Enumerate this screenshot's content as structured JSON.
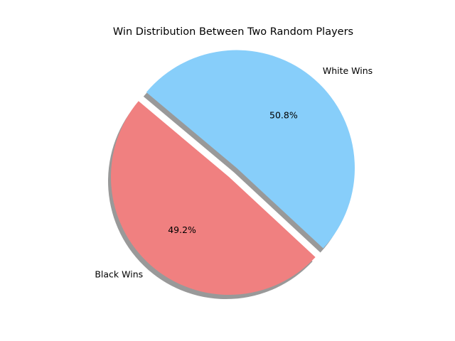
{
  "chart_data": {
    "type": "pie",
    "title": "Win Distribution Between Two Random Players",
    "start_angle_deg": 140,
    "direction": "counterclockwise",
    "shadow": true,
    "slices": [
      {
        "label": "Black Wins",
        "value": 49.2,
        "pct_label": "49.2%",
        "color": "#F08080",
        "exploded": false
      },
      {
        "label": "White Wins",
        "value": 50.8,
        "pct_label": "50.8%",
        "color": "#87CEFA",
        "exploded": true
      }
    ]
  }
}
